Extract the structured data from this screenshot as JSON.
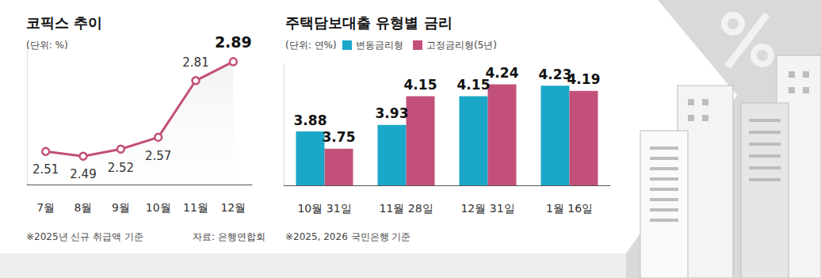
{
  "chart_data": [
    {
      "type": "line",
      "title": "코픽스 추이",
      "subtitle": "(단위: %)",
      "categories": [
        "7월",
        "8월",
        "9월",
        "10월",
        "11월",
        "12월"
      ],
      "values": [
        2.51,
        2.49,
        2.52,
        2.57,
        2.81,
        2.89
      ],
      "color": "#c2507a",
      "ylim": [
        2.37,
        2.95
      ],
      "grid": false,
      "data_labels": true,
      "tick_labels": "x",
      "marker": "circle",
      "annotations": [
        "※2025년 신규 취급액 기준",
        "자료: 은행연합회"
      ]
    },
    {
      "type": "bar",
      "title": "주택담보대출 유형별 금리",
      "subtitle": "(단위: 연%)",
      "categories": [
        "10월 31일",
        "11월 28일",
        "12월 31일",
        "1월 16일"
      ],
      "series": [
        {
          "name": "변동금리형",
          "color": "#1ba8c8",
          "values": [
            3.88,
            3.93,
            4.15,
            4.23
          ]
        },
        {
          "name": "고정금리형(5년)",
          "color": "#c2507a",
          "values": [
            3.75,
            4.15,
            4.24,
            4.19
          ]
        }
      ],
      "ylim": [
        3.47,
        4.4
      ],
      "grid": false,
      "legend": "top-left",
      "data_labels": true,
      "tick_labels": "x",
      "annotations": [
        "※2025, 2026 국민은행 기준"
      ]
    }
  ]
}
